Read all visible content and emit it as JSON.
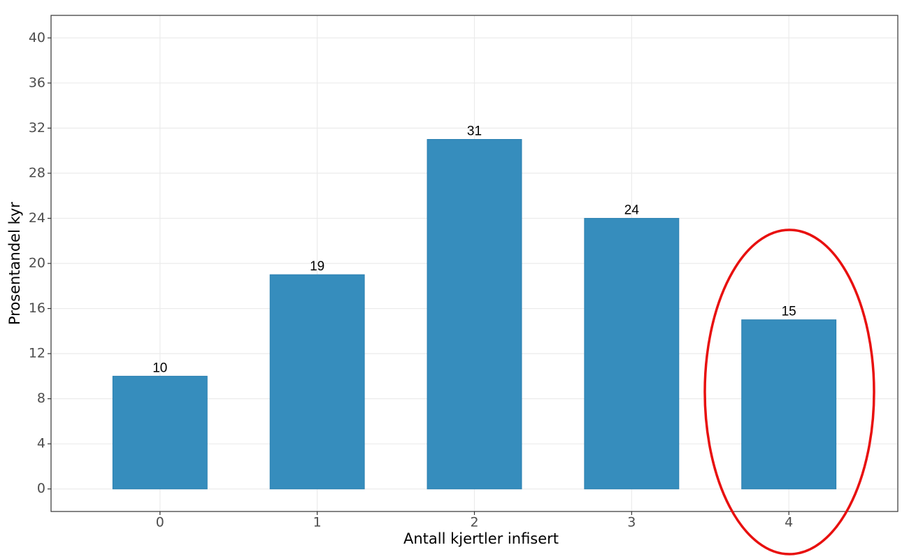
{
  "chart_data": {
    "type": "bar",
    "x_label": "Antall kjertler infisert",
    "y_label": "Prosentandel kyr",
    "categories": [
      "0",
      "1",
      "2",
      "3",
      "4"
    ],
    "values": [
      10,
      19,
      31,
      24,
      15
    ],
    "color": "#368dbd",
    "ylim": [
      -2,
      42
    ],
    "yticks": [
      0,
      4,
      8,
      12,
      16,
      20,
      24,
      28,
      32,
      36,
      40
    ],
    "grid": true
  }
}
